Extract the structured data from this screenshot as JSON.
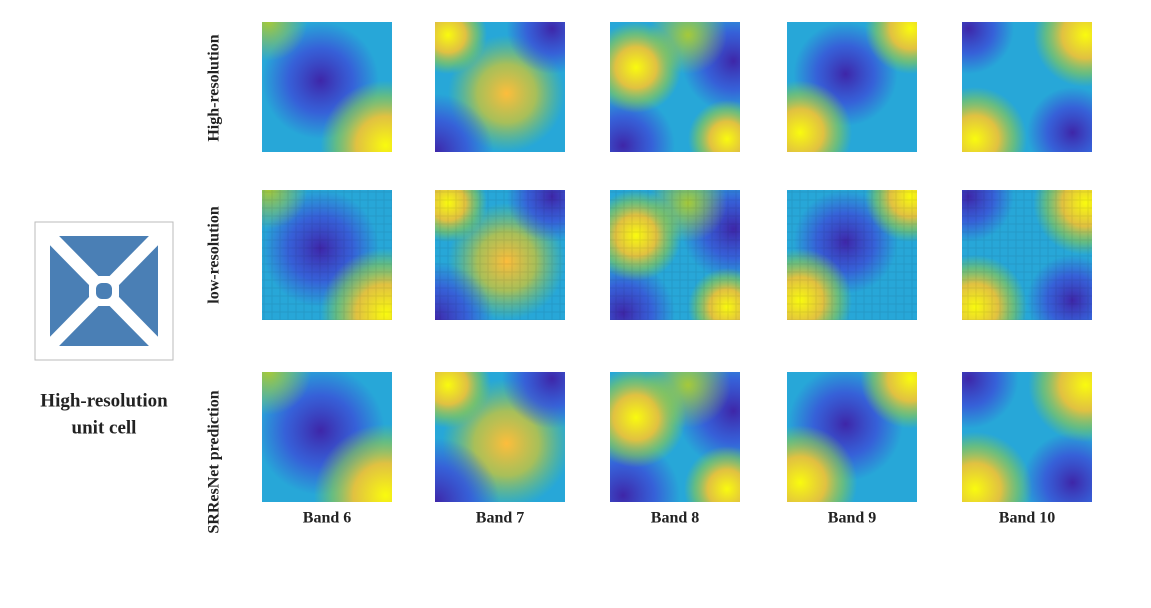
{
  "unit_cell": {
    "label_lines": [
      "High-resolution",
      "unit cell"
    ]
  },
  "rows": [
    "High-resolution",
    "low-resolution",
    "SRResNet prediction"
  ],
  "columns": [
    "Band 6",
    "Band 7",
    "Band 8",
    "Band 9",
    "Band 10"
  ]
}
